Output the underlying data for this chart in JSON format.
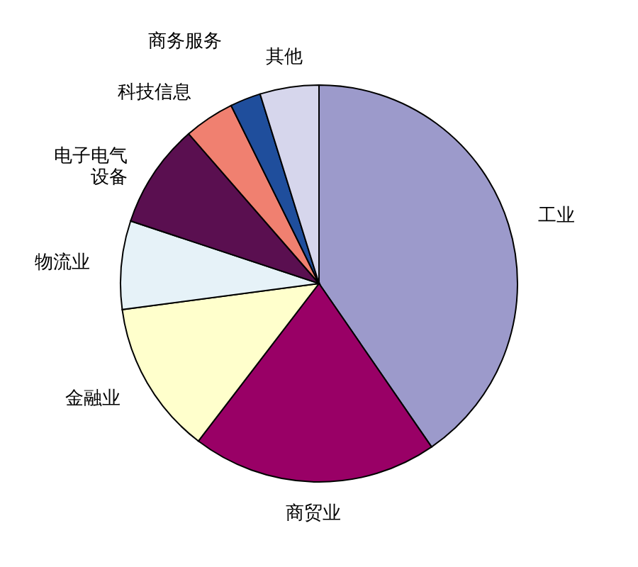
{
  "chart_data": {
    "type": "pie",
    "categories": [
      "工业",
      "商贸业",
      "金融业",
      "物流业",
      "电子电气设备",
      "科技信息",
      "商务服务",
      "其他"
    ],
    "values": [
      40.4,
      20.0,
      12.5,
      7.2,
      8.5,
      4.1,
      2.5,
      4.8
    ],
    "colors": [
      "#9c9acb",
      "#990066",
      "#ffffcc",
      "#e6f2f8",
      "#5a0f50",
      "#f08070",
      "#1f4e9c",
      "#d6d6ec"
    ]
  }
}
